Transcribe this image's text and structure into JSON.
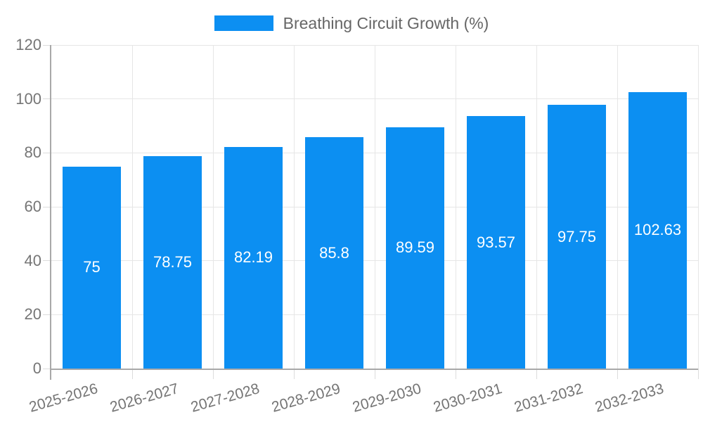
{
  "chart_data": {
    "type": "bar",
    "categories": [
      "2025-2026",
      "2026-2027",
      "2027-2028",
      "2028-2029",
      "2029-2030",
      "2030-2031",
      "2031-2032",
      "2032-2033"
    ],
    "series": [
      {
        "name": "Breathing Circuit Growth (%)",
        "values": [
          75,
          78.75,
          82.19,
          85.8,
          89.59,
          93.57,
          97.75,
          102.63
        ]
      }
    ],
    "value_labels": [
      "75",
      "78.75",
      "82.19",
      "85.8",
      "89.59",
      "93.57",
      "97.75",
      "102.63"
    ],
    "title": "Breathing Circuit Growth (%)",
    "xlabel": "",
    "ylabel": "",
    "ylim": [
      0,
      120
    ],
    "yticks": [
      0,
      20,
      40,
      60,
      80,
      100,
      120
    ],
    "grid": true,
    "legend_position": "top",
    "value_label_position": "center",
    "colors": {
      "bar": "#0c8ff2",
      "axis": "#a8a8a8",
      "grid": "#e6e6e6",
      "tick": "#dcdcdc",
      "tick_label": "#757575",
      "legend_text": "#666666",
      "bar_label": "#ffffff",
      "background": "#ffffff"
    }
  }
}
